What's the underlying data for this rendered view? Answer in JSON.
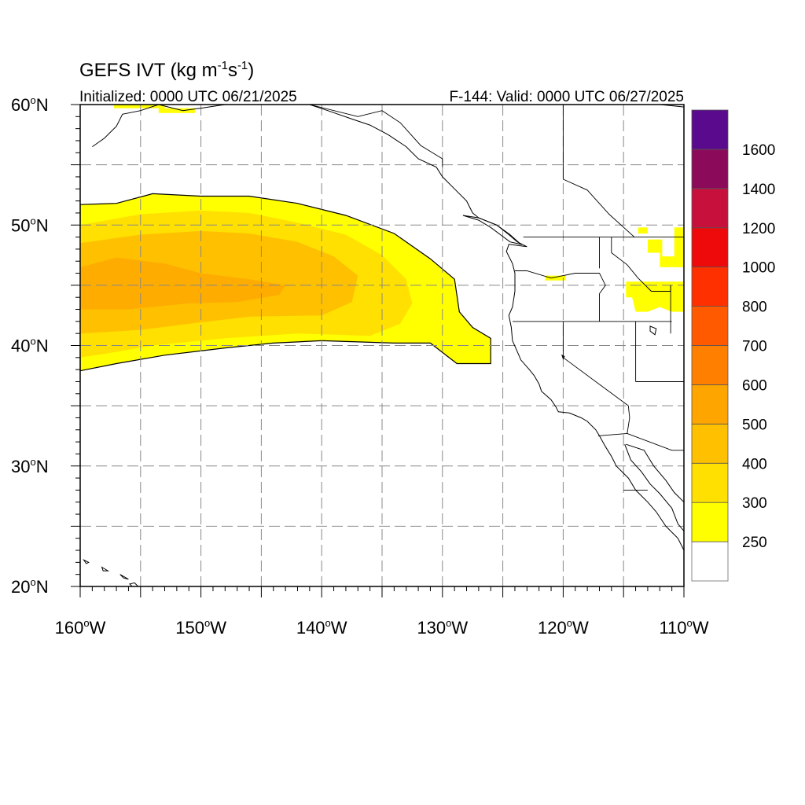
{
  "title": {
    "main": "GEFS IVT (kg m",
    "sup1": "-1",
    "mid": "s",
    "sup2": "-1",
    "close": ")"
  },
  "subtitle_left": "Initialized: 0000 UTC 06/21/2025",
  "subtitle_right": "F-144: Valid: 0000 UTC 06/27/2025",
  "map_extent": {
    "lon": [
      -160,
      -110
    ],
    "lat": [
      20,
      60
    ]
  },
  "lat_labels": [
    {
      "lat": 60,
      "label": "60"
    },
    {
      "lat": 50,
      "label": "50"
    },
    {
      "lat": 40,
      "label": "40"
    },
    {
      "lat": 30,
      "label": "30"
    },
    {
      "lat": 20,
      "label": "20"
    }
  ],
  "lat_suffix": "N",
  "lon_labels": [
    {
      "lon": -160,
      "label": "160"
    },
    {
      "lon": -150,
      "label": "150"
    },
    {
      "lon": -140,
      "label": "140"
    },
    {
      "lon": -130,
      "label": "130"
    },
    {
      "lon": -120,
      "label": "120"
    },
    {
      "lon": -110,
      "label": "110"
    }
  ],
  "lon_suffix": "W",
  "degree_mark": "o",
  "colors": {
    "land_line": "#000000",
    "grid": "#888888",
    "levels": [
      "#ffff00",
      "#ffe000",
      "#ffc000",
      "#ffa500",
      "#ff8000",
      "#ff5a00",
      "#ff3000",
      "#ee0a0a",
      "#c8103c",
      "#8b0a5a",
      "#5a0a8c"
    ],
    "below_first": "#ffffff"
  },
  "colorbar": {
    "labels": [
      "250",
      "300",
      "400",
      "500",
      "600",
      "700",
      "800",
      "1000",
      "1200",
      "1400",
      "1600"
    ]
  },
  "ivt_field": {
    "main_plume_outline": [
      [
        -160,
        51.7
      ],
      [
        -157,
        51.8
      ],
      [
        -154,
        52.6
      ],
      [
        -150,
        52.4
      ],
      [
        -146,
        52.4
      ],
      [
        -142,
        51.8
      ],
      [
        -138,
        50.8
      ],
      [
        -134,
        49.3
      ],
      [
        -131,
        47.2
      ],
      [
        -129,
        45.5
      ],
      [
        -128.6,
        42.8
      ],
      [
        -127.5,
        41.5
      ],
      [
        -126,
        40.6
      ],
      [
        -126,
        38.5
      ],
      [
        -128.8,
        38.5
      ],
      [
        -131,
        40.2
      ],
      [
        -134,
        40.2
      ],
      [
        -140,
        40.4
      ],
      [
        -144,
        40.2
      ],
      [
        -148,
        39.8
      ],
      [
        -153,
        39.2
      ],
      [
        -157,
        38.5
      ],
      [
        -160,
        37.9
      ]
    ],
    "plume_300_outline": [
      [
        -160,
        50
      ],
      [
        -155,
        50.9
      ],
      [
        -150,
        51.2
      ],
      [
        -146,
        51
      ],
      [
        -142,
        50.2
      ],
      [
        -138,
        49.2
      ],
      [
        -135,
        47.5
      ],
      [
        -133,
        45.5
      ],
      [
        -132.5,
        43.5
      ],
      [
        -133.5,
        41.8
      ],
      [
        -136,
        40.8
      ],
      [
        -142,
        41
      ],
      [
        -148,
        40.6
      ],
      [
        -154,
        40
      ],
      [
        -158,
        39.3
      ],
      [
        -160,
        39
      ]
    ],
    "plume_400_outline": [
      [
        -160,
        48.5
      ],
      [
        -155,
        49.2
      ],
      [
        -150,
        49.5
      ],
      [
        -146,
        49.3
      ],
      [
        -142,
        48.6
      ],
      [
        -139,
        47.4
      ],
      [
        -137,
        45.8
      ],
      [
        -137.5,
        43.6
      ],
      [
        -140,
        42.5
      ],
      [
        -146,
        42.4
      ],
      [
        -151,
        41.8
      ],
      [
        -155,
        41.3
      ],
      [
        -160,
        41
      ]
    ],
    "plume_500_outline": [
      [
        -160,
        46.5
      ],
      [
        -157,
        47.3
      ],
      [
        -153,
        46.8
      ],
      [
        -150,
        46
      ],
      [
        -146,
        45.5
      ],
      [
        -143,
        45
      ],
      [
        -143.5,
        44.2
      ],
      [
        -147,
        43.6
      ],
      [
        -151,
        43.5
      ],
      [
        -156,
        43
      ],
      [
        -160,
        43
      ]
    ],
    "alaska_patch": [
      [
        -157.2,
        60
      ],
      [
        -153,
        60
      ],
      [
        -153,
        59.7
      ],
      [
        -150.5,
        59.7
      ],
      [
        -150.5,
        59.3
      ],
      [
        -153.5,
        59.3
      ],
      [
        -153.5,
        59.7
      ],
      [
        -157.2,
        59.7
      ]
    ],
    "oregon_patch": [
      [
        -121.5,
        45.8
      ],
      [
        -119.8,
        45.8
      ],
      [
        -119.8,
        45.4
      ],
      [
        -121.5,
        45.4
      ]
    ],
    "idaho_patches": [
      [
        [
          -113.8,
          49.8
        ],
        [
          -113,
          49.8
        ],
        [
          -113,
          49.3
        ],
        [
          -113.8,
          49.3
        ]
      ],
      [
        [
          -113,
          48.8
        ],
        [
          -111.8,
          48.8
        ],
        [
          -111.8,
          47.4
        ],
        [
          -110.8,
          47.4
        ],
        [
          -110.8,
          49.8
        ],
        [
          -110,
          49.8
        ],
        [
          -110,
          46.5
        ],
        [
          -112,
          46.5
        ],
        [
          -112,
          47.7
        ],
        [
          -113,
          47.7
        ]
      ],
      [
        [
          -114.8,
          45.3
        ],
        [
          -110,
          45.3
        ],
        [
          -110,
          42.8
        ],
        [
          -111,
          42.8
        ],
        [
          -112,
          43.2
        ],
        [
          -113,
          42.8
        ],
        [
          -114,
          42.8
        ],
        [
          -114.3,
          44
        ],
        [
          -114.8,
          44
        ]
      ]
    ]
  },
  "coastlines": {
    "alaska": [
      [
        -159,
        56.5
      ],
      [
        -158,
        57.2
      ],
      [
        -157,
        58.2
      ],
      [
        -156.5,
        59.2
      ],
      [
        -155,
        59.5
      ],
      [
        -153.5,
        60
      ],
      [
        -151.5,
        59.5
      ],
      [
        -150,
        59.7
      ],
      [
        -148,
        60
      ],
      [
        -146,
        60.5
      ]
    ],
    "alaska_panhandle": [
      [
        -141,
        60
      ],
      [
        -139.5,
        59.5
      ],
      [
        -137.5,
        58.8
      ],
      [
        -136,
        58.3
      ],
      [
        -134.5,
        57.5
      ],
      [
        -133,
        56.5
      ],
      [
        -132,
        55.5
      ],
      [
        -130.5,
        54.8
      ],
      [
        -130,
        54
      ],
      [
        -129,
        53
      ],
      [
        -128,
        52
      ],
      [
        -127.5,
        51
      ],
      [
        -127,
        50.6
      ],
      [
        -125.5,
        50
      ],
      [
        -124.5,
        49.2
      ],
      [
        -123.8,
        48.6
      ],
      [
        -123,
        48.2
      ],
      [
        -124.5,
        48.4
      ],
      [
        -124.7,
        47.8
      ],
      [
        -124.2,
        46.8
      ],
      [
        -124,
        46
      ],
      [
        -124,
        44.5
      ],
      [
        -124.2,
        43.2
      ],
      [
        -124.5,
        42.5
      ],
      [
        -124.3,
        41.5
      ],
      [
        -124.2,
        40.4
      ],
      [
        -123.8,
        39.5
      ],
      [
        -123.5,
        38.8
      ],
      [
        -122.8,
        38
      ],
      [
        -122.4,
        37.5
      ],
      [
        -122,
        36.8
      ],
      [
        -121.8,
        36.2
      ],
      [
        -121,
        35.5
      ],
      [
        -120.6,
        34.9
      ],
      [
        -120.4,
        34.5
      ],
      [
        -119.5,
        34.4
      ],
      [
        -118.5,
        34
      ],
      [
        -118,
        33.7
      ],
      [
        -117.3,
        33
      ],
      [
        -117,
        32.5
      ],
      [
        -116.5,
        31.6
      ],
      [
        -116,
        30.8
      ],
      [
        -115.6,
        30
      ],
      [
        -114.6,
        29
      ],
      [
        -114,
        28
      ],
      [
        -113,
        27
      ],
      [
        -112.3,
        26.2
      ],
      [
        -111.5,
        25
      ],
      [
        -110.5,
        24
      ],
      [
        -110,
        23
      ]
    ],
    "vancouver_island": [
      [
        -128.3,
        50.8
      ],
      [
        -127,
        50.4
      ],
      [
        -126,
        49.8
      ],
      [
        -125.2,
        49.2
      ],
      [
        -124.4,
        48.6
      ],
      [
        -123.5,
        48.4
      ],
      [
        -124.4,
        49.2
      ],
      [
        -125.5,
        50
      ],
      [
        -127,
        50.6
      ],
      [
        -128.3,
        50.8
      ]
    ],
    "gulf_california": [
      [
        -114.9,
        31.8
      ],
      [
        -114.4,
        30.5
      ],
      [
        -113.5,
        29.5
      ],
      [
        -112.8,
        28.5
      ],
      [
        -112,
        27.7
      ],
      [
        -111,
        26.5
      ],
      [
        -110.5,
        25.2
      ],
      [
        -109.5,
        24
      ],
      [
        -109.8,
        23.2
      ]
    ],
    "mainland_mexico": [
      [
        -114.8,
        31.8
      ],
      [
        -113.3,
        31.3
      ],
      [
        -112.5,
        30
      ],
      [
        -111.5,
        28.8
      ],
      [
        -110.8,
        27.8
      ],
      [
        -109.8,
        26.8
      ],
      [
        -109.2,
        25.5
      ],
      [
        -108.2,
        25
      ]
    ],
    "hawaii_big": [
      [
        -155.9,
        20.2
      ],
      [
        -155.2,
        19.5
      ],
      [
        -154.8,
        19.6
      ],
      [
        -155.5,
        20.3
      ],
      [
        -155.9,
        20.2
      ]
    ],
    "hawaii_maui": [
      [
        -156.7,
        21
      ],
      [
        -156,
        20.6
      ],
      [
        -156.4,
        20.7
      ],
      [
        -156.7,
        21
      ]
    ],
    "hawaii_kauai": [
      [
        -159.7,
        22.2
      ],
      [
        -159.3,
        22
      ],
      [
        -159.5,
        21.9
      ],
      [
        -159.7,
        22.2
      ]
    ],
    "hawaii_oahu": [
      [
        -158.2,
        21.6
      ],
      [
        -157.7,
        21.3
      ],
      [
        -158.1,
        21.3
      ],
      [
        -158.2,
        21.6
      ]
    ],
    "hudson_outline": [
      [
        -110,
        59.8
      ],
      [
        -111,
        59.9
      ],
      [
        -112,
        60
      ]
    ]
  },
  "borders": {
    "us_canada": [
      [
        -123.3,
        49
      ],
      [
        -110,
        49
      ]
    ],
    "alaska_canada": [
      [
        -141,
        60
      ],
      [
        -137,
        59
      ],
      [
        -135,
        59.5
      ],
      [
        -133.5,
        58.5
      ],
      [
        -131.8,
        56.6
      ],
      [
        -130,
        55.5
      ],
      [
        -130,
        54.8
      ]
    ],
    "bc_alberta": [
      [
        -120,
        60
      ],
      [
        -120,
        53.8
      ],
      [
        -118,
        52.9
      ],
      [
        -116.2,
        50.9
      ],
      [
        -114.1,
        49
      ]
    ],
    "wa_or": [
      [
        -124,
        46.2
      ],
      [
        -123,
        46.2
      ],
      [
        -121,
        45.6
      ],
      [
        -119,
        46
      ],
      [
        -117,
        46
      ]
    ],
    "wa_id": [
      [
        -117,
        49
      ],
      [
        -117,
        46.4
      ]
    ],
    "or_id": [
      [
        -117,
        46
      ],
      [
        -116.8,
        45.6
      ],
      [
        -116.5,
        45
      ],
      [
        -117,
        44.3
      ],
      [
        -117,
        42
      ]
    ],
    "or_ca_nv": [
      [
        -124.2,
        42
      ],
      [
        -111,
        42
      ]
    ],
    "ca_nv": [
      [
        -120,
        42
      ],
      [
        -120,
        39
      ],
      [
        -114.6,
        35
      ]
    ],
    "nv_ut": [
      [
        -114,
        42
      ],
      [
        -114,
        37
      ]
    ],
    "ut_az": [
      [
        -114,
        37
      ],
      [
        -110,
        37
      ]
    ],
    "id_mt": [
      [
        -116,
        49
      ],
      [
        -116,
        47.7
      ],
      [
        -114.7,
        46.7
      ],
      [
        -113.8,
        45.6
      ],
      [
        -112.7,
        44.5
      ],
      [
        -111.1,
        44.5
      ],
      [
        -111.1,
        45
      ]
    ],
    "id_wy": [
      [
        -111.1,
        45
      ],
      [
        -111.1,
        41
      ]
    ],
    "az_ca": [
      [
        -114.6,
        35
      ],
      [
        -114.5,
        34
      ],
      [
        -114.7,
        32.7
      ]
    ],
    "us_mexico": [
      [
        -117.1,
        32.5
      ],
      [
        -114.7,
        32.7
      ],
      [
        -111,
        31.3
      ],
      [
        -110,
        31.3
      ]
    ],
    "bc_baja": [
      [
        -115,
        28
      ],
      [
        -113,
        28
      ]
    ]
  },
  "lakes": {
    "great_salt": [
      [
        -112.8,
        41.6
      ],
      [
        -112.3,
        41.4
      ],
      [
        -112.4,
        40.9
      ],
      [
        -112.8,
        41.2
      ]
    ],
    "tahoe": [
      [
        -120.1,
        39.2
      ],
      [
        -119.9,
        39.1
      ],
      [
        -120,
        38.9
      ]
    ]
  }
}
